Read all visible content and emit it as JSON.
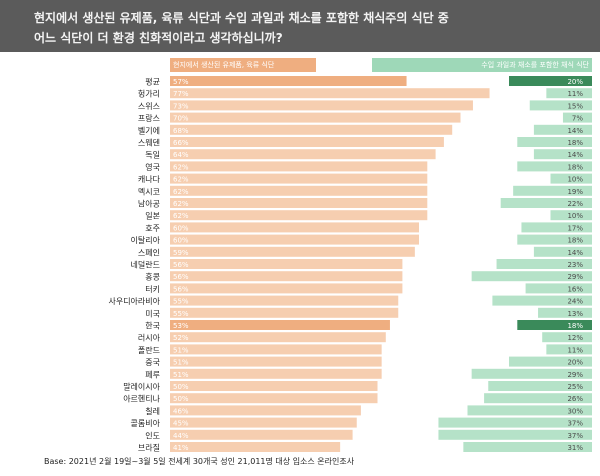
{
  "title_line1": "현지에서 생산된 유제품, 육류 식단과 수입 과일과 채소를 포함한 채식주의 식단 중",
  "title_line2": "어느 식단이 더 환경 친화적이라고 생각하십니까?",
  "footnote": "Base: 2021년 2월 19일~3월  5일 전세계 30개국 성인 21,011명 대상 입소스 온라인조사",
  "colors": {
    "header_bg": "#5b5b5b",
    "left_bar": "#f6ceb0",
    "left_highlight": "#efae80",
    "right_bar": "#b5e2c8",
    "right_highlight": "#3a8a5a"
  },
  "chart_data": {
    "type": "bar",
    "orientation": "horizontal-diverging",
    "series": [
      {
        "name": "현지에서 생산된 유제품, 육류 식단",
        "side": "left"
      },
      {
        "name": "수입 과일과 채소를 포함한 채식 식단",
        "side": "right"
      }
    ],
    "categories": [
      "평균",
      "헝가리",
      "스위스",
      "프랑스",
      "벨기에",
      "스웨덴",
      "독일",
      "영국",
      "캐나다",
      "멕시코",
      "남아공",
      "일본",
      "호주",
      "이탈리아",
      "스페인",
      "네덜란드",
      "홍콩",
      "터키",
      "사우디아라비아",
      "미국",
      "한국",
      "러시아",
      "폴란드",
      "중국",
      "페루",
      "말레이시아",
      "아르헨티나",
      "칠레",
      "콜롬비아",
      "인도",
      "브라질"
    ],
    "left_values": [
      57,
      77,
      73,
      70,
      68,
      66,
      64,
      62,
      62,
      62,
      62,
      62,
      60,
      60,
      59,
      56,
      56,
      56,
      55,
      55,
      53,
      52,
      51,
      51,
      51,
      50,
      50,
      46,
      45,
      44,
      41
    ],
    "right_values": [
      20,
      11,
      15,
      7,
      14,
      18,
      14,
      18,
      10,
      19,
      22,
      10,
      17,
      18,
      14,
      23,
      29,
      16,
      24,
      13,
      18,
      12,
      11,
      20,
      29,
      25,
      26,
      30,
      37,
      37,
      31
    ],
    "left_labels": [
      "57%",
      "77%",
      "73%",
      "70%",
      "68%",
      "66%",
      "64%",
      "62%",
      "62%",
      "62%",
      "62%",
      "62%",
      "60%",
      "60%",
      "59%",
      "56%",
      "56%",
      "56%",
      "55%",
      "55%",
      "53%",
      "52%",
      "51%",
      "51%",
      "51%",
      "50%",
      "50%",
      "46%",
      "45%",
      "44%",
      "41%"
    ],
    "right_labels": [
      "20%",
      "11%",
      "15%",
      "7%",
      "14%",
      "18%",
      "14%",
      "18%",
      "10%",
      "19%",
      "22%",
      "10%",
      "17%",
      "18%",
      "14%",
      "23%",
      "29%",
      "16%",
      "24%",
      "13%",
      "18%",
      "12%",
      "11%",
      "20%",
      "29%",
      "25%",
      "26%",
      "30%",
      "37%",
      "37%",
      "31%"
    ],
    "highlighted": [
      "평균",
      "한국"
    ],
    "xlim": [
      0,
      100
    ]
  }
}
